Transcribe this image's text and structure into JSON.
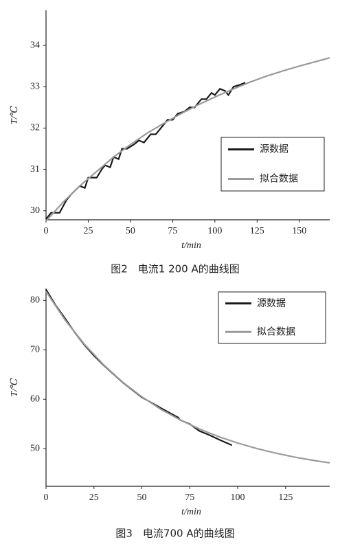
{
  "chart_data": [
    {
      "type": "line",
      "caption": "图2　电流1 200 A的曲线图",
      "xlabel": "t/min",
      "ylabel": "T/℃",
      "xlim": [
        0,
        168
      ],
      "xticks": [
        0,
        25,
        50,
        75,
        100,
        125,
        150
      ],
      "ylim": [
        29.78,
        34.85
      ],
      "yticks": [
        30,
        31,
        32,
        33,
        34
      ],
      "legend": "right",
      "series": [
        {
          "name": "源数据",
          "color": "#1a1a1a",
          "x": [
            0,
            3,
            8,
            12,
            15,
            20,
            23,
            25,
            30,
            33,
            35,
            38,
            40,
            43,
            45,
            48,
            52,
            55,
            58,
            62,
            65,
            68,
            72,
            75,
            78,
            82,
            85,
            88,
            92,
            95,
            98,
            100,
            103,
            106,
            108,
            111,
            115,
            118
          ],
          "values": [
            29.8,
            29.95,
            29.95,
            30.25,
            30.4,
            30.6,
            30.55,
            30.8,
            30.8,
            31.0,
            31.1,
            31.05,
            31.3,
            31.25,
            31.5,
            31.5,
            31.6,
            31.7,
            31.65,
            31.85,
            31.85,
            32.0,
            32.2,
            32.2,
            32.35,
            32.4,
            32.5,
            32.5,
            32.7,
            32.7,
            32.85,
            32.8,
            32.95,
            32.9,
            32.8,
            33.0,
            33.05,
            33.1
          ]
        },
        {
          "name": "拟合数据",
          "color": "#9a9a9a",
          "x": [
            0,
            10,
            20,
            30,
            40,
            50,
            60,
            70,
            80,
            90,
            100,
            110,
            120,
            130,
            140,
            150,
            160,
            168
          ],
          "values": [
            29.75,
            30.2,
            30.6,
            30.95,
            31.3,
            31.6,
            31.88,
            32.12,
            32.35,
            32.56,
            32.75,
            32.93,
            33.1,
            33.25,
            33.38,
            33.5,
            33.61,
            33.7
          ]
        }
      ]
    },
    {
      "type": "line",
      "caption": "图3　电流700 A的曲线图",
      "xlabel": "t/min",
      "ylabel": "T/℃",
      "xlim": [
        0,
        148
      ],
      "xticks": [
        0,
        25,
        50,
        75,
        100,
        125
      ],
      "ylim": [
        42.4,
        82.4
      ],
      "yticks": [
        50,
        60,
        70,
        80
      ],
      "legend": "upper right",
      "series": [
        {
          "name": "源数据",
          "color": "#1a1a1a",
          "x": [
            0,
            5,
            10,
            15,
            20,
            25,
            30,
            40,
            50,
            60,
            68,
            69,
            70,
            75,
            80,
            85,
            90,
            97
          ],
          "values": [
            82.2,
            79,
            76.3,
            73.5,
            71,
            68.8,
            66.9,
            63.4,
            60.4,
            58.2,
            56.5,
            56.3,
            55.8,
            55.0,
            53.6,
            52.8,
            51.9,
            50.7
          ]
        },
        {
          "name": "拟合数据",
          "color": "#9a9a9a",
          "x": [
            0,
            10,
            20,
            30,
            40,
            50,
            60,
            70,
            80,
            90,
            100,
            110,
            120,
            130,
            140,
            148
          ],
          "values": [
            81.8,
            76.0,
            71.13,
            66.99,
            63.46,
            60.5,
            57.96,
            55.83,
            54.0,
            52.45,
            51.15,
            50.02,
            49.1,
            48.27,
            47.61,
            47.13
          ]
        }
      ]
    }
  ]
}
